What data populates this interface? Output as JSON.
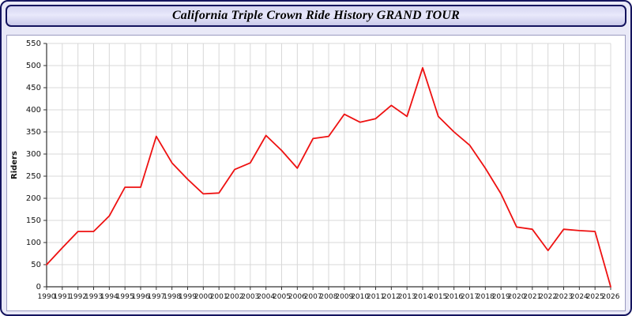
{
  "title": "California Triple Crown Ride History GRAND TOUR",
  "colors": {
    "line": "#ee1111",
    "grid": "#d8d8d8",
    "axis": "#333333",
    "tick_text": "#111111",
    "frame": "#14145e",
    "page_bg": "#e9e9f7",
    "plot_bg": "#ffffff"
  },
  "chart_data": {
    "type": "line",
    "title": "California Triple Crown Ride History GRAND TOUR",
    "xlabel": "",
    "ylabel": "Riders",
    "ylim": [
      0,
      550
    ],
    "ytick_step": 50,
    "grid": true,
    "legend": "none",
    "categories": [
      1990,
      1991,
      1992,
      1993,
      1994,
      1995,
      1996,
      1997,
      1998,
      1999,
      2000,
      2001,
      2002,
      2003,
      2004,
      2005,
      2006,
      2007,
      2008,
      2009,
      2010,
      2011,
      2012,
      2013,
      2014,
      2015,
      2016,
      2017,
      2018,
      2019,
      2020,
      2021,
      2022,
      2023,
      2024,
      2025,
      2026
    ],
    "series": [
      {
        "name": "Riders",
        "values": [
          50,
          88,
          125,
          125,
          160,
          225,
          225,
          340,
          280,
          243,
          210,
          212,
          265,
          280,
          342,
          308,
          268,
          335,
          340,
          390,
          372,
          380,
          410,
          385,
          495,
          385,
          350,
          320,
          268,
          210,
          135,
          130,
          82,
          130,
          127,
          125,
          0
        ]
      }
    ]
  }
}
